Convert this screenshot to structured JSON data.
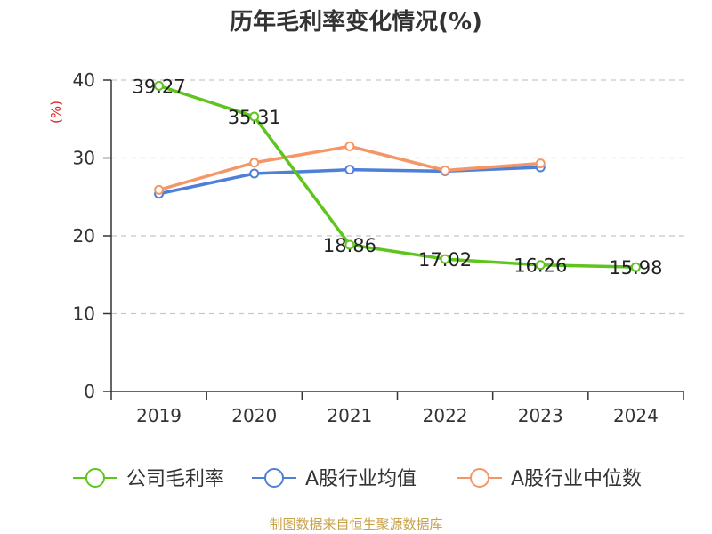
{
  "chart_data": {
    "type": "line",
    "title": "历年毛利率变化情况(%)",
    "ylabel": "(%)",
    "xlabel": "",
    "categories": [
      "2019",
      "2020",
      "2021",
      "2022",
      "2023",
      "2024"
    ],
    "ylim": [
      0,
      40
    ],
    "yticks": [
      0,
      10,
      20,
      30,
      40
    ],
    "grid": true,
    "legend_position": "bottom",
    "series": [
      {
        "name": "公司毛利率",
        "color": "#5ec41e",
        "values": [
          39.27,
          35.31,
          18.86,
          17.02,
          16.26,
          15.98
        ],
        "labels": [
          "39.27",
          "35.31",
          "18.86",
          "17.02",
          "16.26",
          "15.98"
        ]
      },
      {
        "name": "A股行业均值",
        "color": "#4f80d8",
        "values": [
          25.4,
          28.0,
          28.5,
          28.3,
          28.8,
          null
        ],
        "labels": null
      },
      {
        "name": "A股行业中位数",
        "color": "#f59666",
        "values": [
          25.9,
          29.4,
          31.5,
          28.4,
          29.3,
          null
        ],
        "labels": null
      }
    ]
  },
  "footer": {
    "source": "制图数据来自恒生聚源数据库"
  },
  "colors": {
    "title": "#333333",
    "axis": "#333333",
    "tick_text": "#333333",
    "grid": "#c8c8c8",
    "ylabel": "#e02020",
    "source": "#c9a24a"
  }
}
